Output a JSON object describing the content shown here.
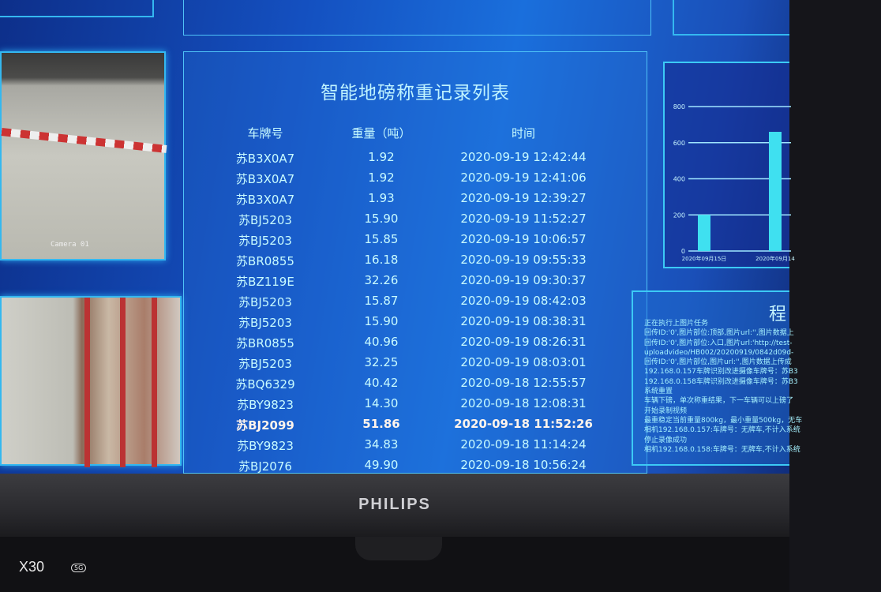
{
  "main": {
    "title": "智能地磅称重记录列表",
    "columns": [
      "车牌号",
      "重量（吨）",
      "时间"
    ],
    "rows": [
      {
        "plate": "苏B3X0A7",
        "weight": "1.92",
        "time": "2020-09-19 12:42:44"
      },
      {
        "plate": "苏B3X0A7",
        "weight": "1.92",
        "time": "2020-09-19 12:41:06"
      },
      {
        "plate": "苏B3X0A7",
        "weight": "1.93",
        "time": "2020-09-19 12:39:27"
      },
      {
        "plate": "苏BJ5203",
        "weight": "15.90",
        "time": "2020-09-19 11:52:27"
      },
      {
        "plate": "苏BJ5203",
        "weight": "15.85",
        "time": "2020-09-19 10:06:57"
      },
      {
        "plate": "苏BR0855",
        "weight": "16.18",
        "time": "2020-09-19 09:55:33"
      },
      {
        "plate": "苏BZ119E",
        "weight": "32.26",
        "time": "2020-09-19 09:30:37"
      },
      {
        "plate": "苏BJ5203",
        "weight": "15.87",
        "time": "2020-09-19 08:42:03"
      },
      {
        "plate": "苏BJ5203",
        "weight": "15.90",
        "time": "2020-09-19 08:38:31"
      },
      {
        "plate": "苏BR0855",
        "weight": "40.96",
        "time": "2020-09-19 08:26:31"
      },
      {
        "plate": "苏BJ5203",
        "weight": "32.25",
        "time": "2020-09-19 08:03:01"
      },
      {
        "plate": "苏BQ6329",
        "weight": "40.42",
        "time": "2020-09-18 12:55:57"
      },
      {
        "plate": "苏BY9823",
        "weight": "14.30",
        "time": "2020-09-18 12:08:31"
      },
      {
        "plate": "苏BJ2099",
        "weight": "51.86",
        "time": "2020-09-18 11:52:26",
        "highlighted": true
      },
      {
        "plate": "苏BY9823",
        "weight": "34.83",
        "time": "2020-09-18 11:14:24"
      },
      {
        "plate": "苏BJ2076",
        "weight": "49.90",
        "time": "2020-09-18 10:56:24"
      }
    ]
  },
  "camera": {
    "label": "Camera 01"
  },
  "chart_data": {
    "type": "bar",
    "categories": [
      "2020年09月15日",
      "2020年09月14"
    ],
    "values": [
      200,
      660
    ],
    "yticks": [
      0,
      200,
      400,
      600,
      800
    ],
    "ylim": [
      0,
      800
    ],
    "grid": true,
    "bar_color": "#3fe0f0"
  },
  "log": {
    "title": "程",
    "lines": [
      "正在执行上图片任务",
      "回传ID:'0',图片部位:顶部,图片url:'',图片数据上",
      "回传ID:'0',图片部位:入口,图片url:'http://test-",
      "uploadvideo/HB002/20200919/0842d09d-",
      "回传ID:'0',图片部位,图片url:'',图片数据上传成",
      "192.168.0.157车牌识别改进摄像车牌号：苏B3",
      "192.168.0.158车牌识别改进摄像车牌号：苏B3",
      "系统重置",
      "车辆下磅，单次称重结果，下一车辆可以上磅了",
      "开始录制视频",
      "最重稳定当前重量800kg，最小重量500kg，无车",
      "相机192.168.0.157:车牌号：无牌车,不计入系统",
      "停止录像成功",
      "相机192.168.0.158:车牌号：无牌车,不计入系统"
    ]
  },
  "monitor": {
    "brand": "PHILIPS"
  },
  "watermark": {
    "model": "X30",
    "badge": "5G"
  },
  "colors": {
    "accent": "#34b8f0",
    "text": "#c8fbff",
    "background": "#1a5fd0"
  }
}
